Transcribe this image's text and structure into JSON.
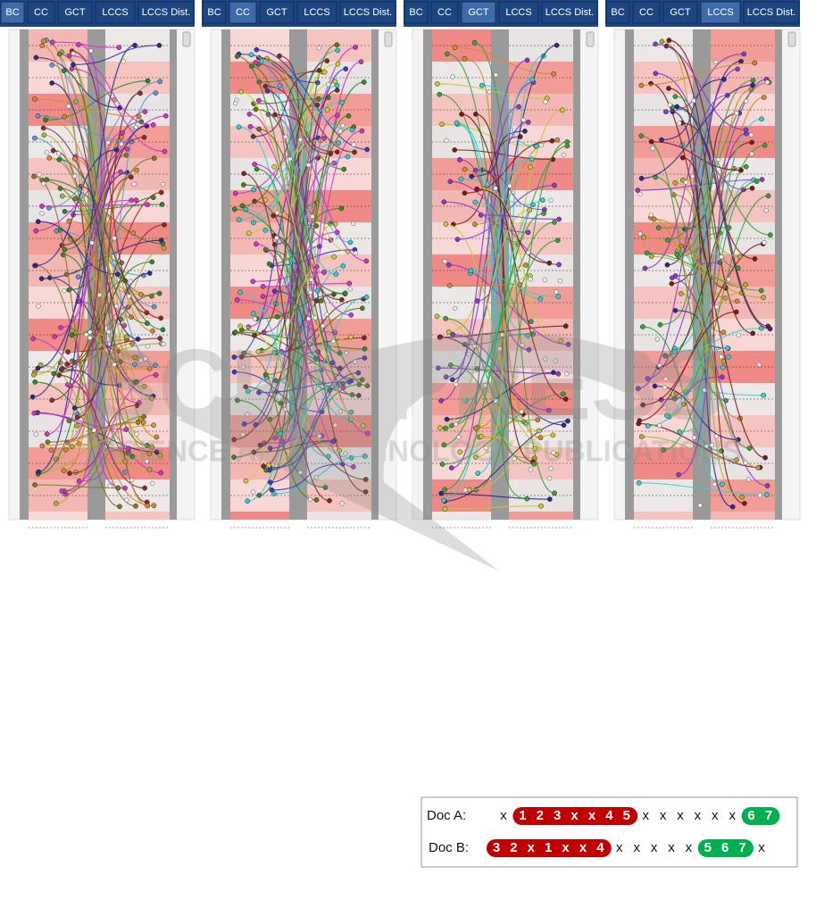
{
  "panels": [
    {
      "tabs": [
        "BC",
        "CC",
        "GCT",
        "LCCS",
        "LCCS Dist."
      ],
      "active": 0
    },
    {
      "tabs": [
        "BC",
        "CC",
        "GCT",
        "LCCS",
        "LCCS Dist."
      ],
      "active": 1
    },
    {
      "tabs": [
        "BC",
        "CC",
        "GCT",
        "LCCS",
        "LCCS Dist."
      ],
      "active": 2
    },
    {
      "tabs": [
        "BC",
        "CC",
        "GCT",
        "LCCS",
        "LCCS Dist."
      ],
      "active": 3
    }
  ],
  "watermark": {
    "title": "SCITEPRESS",
    "subtitle": "SCIENCE AND TECHNOLOGY PUBLICATIONS"
  },
  "example": {
    "rows": [
      {
        "label": "Doc A:",
        "segments": [
          {
            "tokens": [
              "x"
            ]
          },
          {
            "tokens": [
              "1",
              "2",
              "3",
              "x",
              "x",
              "4",
              "5"
            ],
            "color": "#c00000"
          },
          {
            "tokens": [
              "x",
              "x",
              "x",
              "x",
              "x",
              "x"
            ]
          },
          {
            "tokens": [
              "6",
              "7"
            ],
            "color": "#00b050"
          }
        ]
      },
      {
        "label": "Doc B:",
        "segments": [
          {
            "tokens": [
              "3",
              "2",
              "x",
              "1",
              "x",
              "x",
              "4"
            ],
            "color": "#c00000"
          },
          {
            "tokens": [
              "x",
              "x",
              "x",
              "x",
              "x"
            ]
          },
          {
            "tokens": [
              "5",
              "6",
              "7"
            ],
            "color": "#00b050"
          },
          {
            "tokens": [
              "x"
            ]
          }
        ]
      }
    ]
  }
}
